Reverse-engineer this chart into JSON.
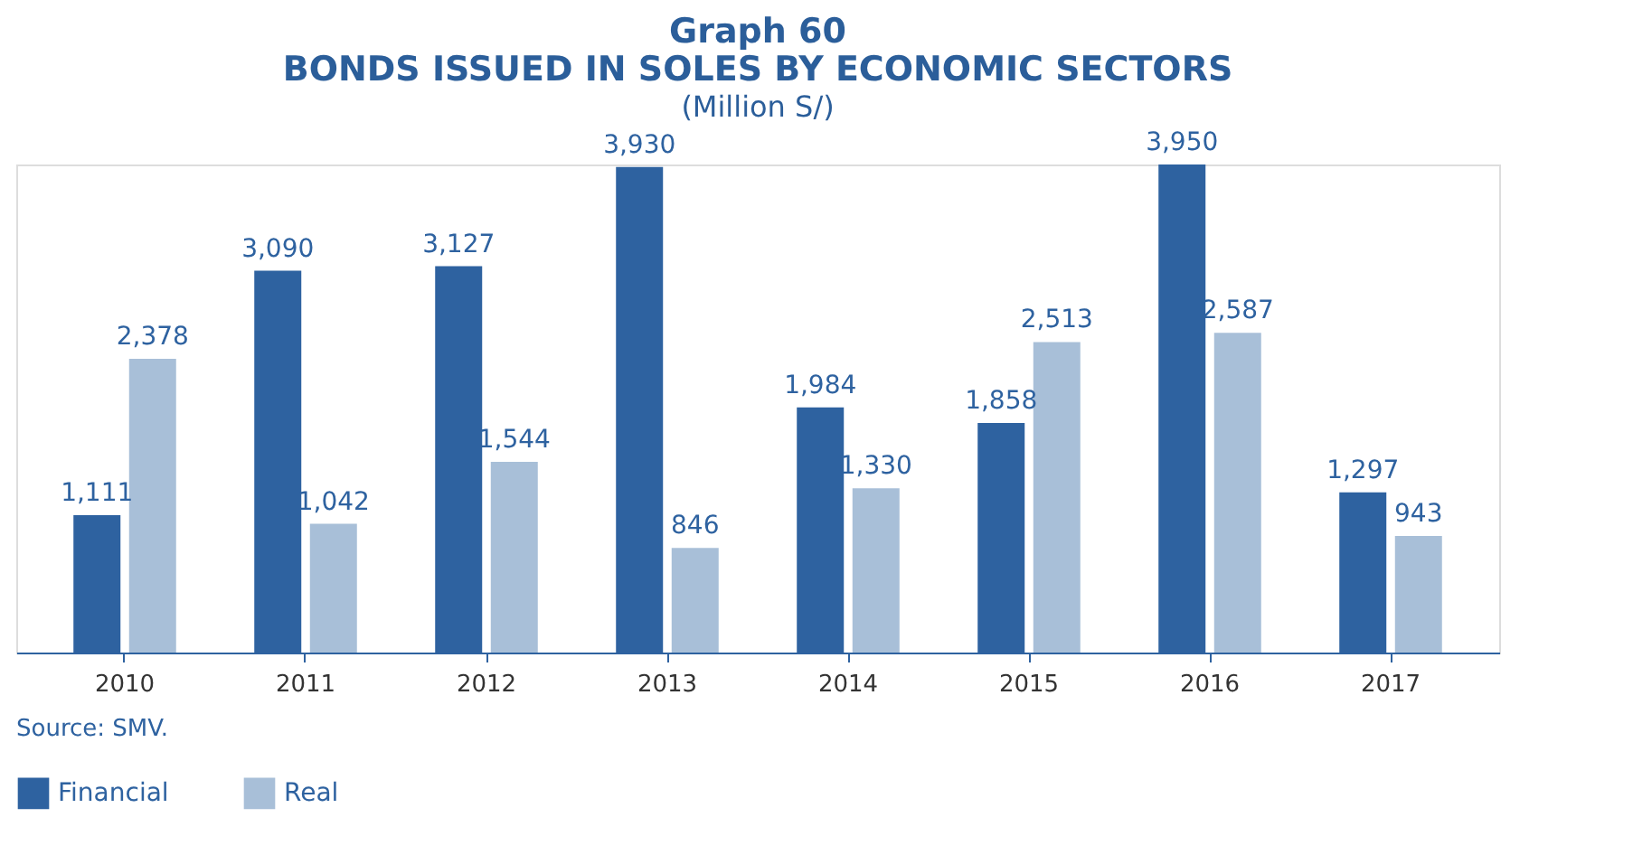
{
  "chart_data": {
    "type": "bar",
    "title": "Graph 60",
    "subtitle": "BONDS ISSUED IN SOLES BY ECONOMIC SECTORS",
    "ylabel": "(Million S/)",
    "categories": [
      "2010",
      "2011",
      "2012",
      "2013",
      "2014",
      "2015",
      "2016",
      "2017"
    ],
    "series": [
      {
        "name": "Financial",
        "color": "#2e62a0",
        "values": [
          1111,
          3090,
          3127,
          3930,
          1984,
          1858,
          3950,
          1297
        ],
        "value_labels": [
          "1,111",
          "3,090",
          "3,127",
          "3,930",
          "1,984",
          "1,858",
          "3,950",
          "1,297"
        ]
      },
      {
        "name": "Real",
        "color": "#a8bfd8",
        "values": [
          2378,
          1042,
          1544,
          846,
          1330,
          2513,
          2587,
          943
        ],
        "value_labels": [
          "2,378",
          "1,042",
          "1,544",
          "846",
          "1,330",
          "2,513",
          "2,587",
          "943"
        ]
      }
    ],
    "legend": "bottom",
    "grid": false,
    "annotations": [
      "Source: SMV."
    ]
  }
}
